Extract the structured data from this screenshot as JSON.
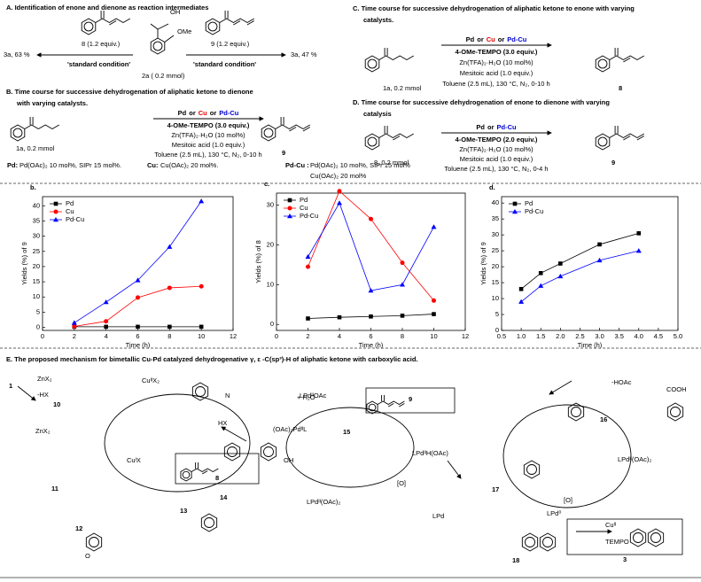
{
  "scheme_A": {
    "title": "A. Identification of enone and dienone as reaction intermediates",
    "labels": [
      "3a, 63 %",
      "8 (1.2 equiv.)",
      "'standard condition'",
      "2a ( 0.2 mmol)",
      "9 (1.2 equiv.)",
      "'standard condition'",
      "3a, 47 %",
      "OH",
      "OMe"
    ]
  },
  "scheme_B": {
    "title_lines": [
      "B. Time course for successive dehydrogenation of aliphatic ketone to dienone",
      "with varying catalysts."
    ],
    "catalyst_header": [
      "Pd",
      "or",
      "Cu",
      "or",
      "Pd-Cu"
    ],
    "conditions": [
      "4-OMe-TEMPO (3.0 equiv.)",
      "Zn(TFA)₂·H₂O (10 mol%)",
      "Mesitoic acid (1.0 equiv.)",
      "Toluene (2.5 mL), 130 °C, N₂, 0-10 h"
    ],
    "labels": [
      "1a, 0.2 mmol",
      "9",
      "Pd:",
      "Pd(OAc)₂ 10 mol%, SIPr 15 mol%.",
      "Cu:",
      "Cu(OAc)₂ 20 mol%.",
      "Pd-Cu :",
      "Pd(OAc)₂ 10 mol%, SIPr 15 mol%",
      "Cu(OAc)₂ 20 mol%"
    ]
  },
  "scheme_C": {
    "title_lines": [
      "C. Time course for successive dehydrogenation of aliphatic ketone to enone with varying",
      "catalysts."
    ],
    "catalyst_header": [
      "Pd",
      "or",
      "Cu",
      "or",
      "Pd-Cu"
    ],
    "conditions": [
      "4-OMe-TEMPO (3.0 equiv.)",
      "Zn(TFA)₂·H₂O (10 mol%)",
      "Mesitoic acid (1.0 equiv.)",
      "Toluene (2.5 mL), 130 °C, N₂, 0-10 h"
    ],
    "labels": [
      "1a, 0.2 mmol",
      "8"
    ]
  },
  "scheme_D": {
    "title_lines": [
      "D. Time course for successive dehydrogenation of enone to dienone with varying",
      "catalysis"
    ],
    "catalyst_header": [
      "Pd",
      "or",
      "Pd-Cu"
    ],
    "conditions": [
      "4-OMe-TEMPO (2.0 equiv.)",
      "Zn(TFA)₂·H₂O (10 mol%)",
      "Mesitoic acid (1.0 equiv.)",
      "Toluene (2.5 mL), 130 °C, N₂, 0-4 h"
    ],
    "labels": [
      "8, 0.2 mmol",
      "9"
    ]
  },
  "scheme_E": {
    "title": "E. The proposed mechanism for bimetallic Cu-Pd catalyzed dehydrogenative γ, ε -C(sp³)-H of aliphatic ketone with carboxylic acid.",
    "labels": [
      "1",
      "ZnX₂",
      "-HX",
      "10",
      "CuᴵᴵX₂",
      "+ H₂O",
      "HX",
      "ZnX₂",
      "CuᴵX",
      "11",
      "12",
      "13",
      "14",
      "15",
      "9",
      "8",
      "LPdᴵᴵH(OAc)",
      "[O]",
      "LPdᴵᴵ(OAc)₂",
      "16",
      "-HOAc",
      "COOH",
      "LPdᴵᴵ(OAc)₂",
      "[O]",
      "LPd⁰",
      "17",
      "LPd",
      "18",
      "Cuᴵᴵ",
      "TEMPO",
      "3",
      "(OAc)₂PdᴵᴵL",
      "LPdᴵᴵOAc",
      "N",
      "O",
      "OH"
    ]
  },
  "chart_data": [
    {
      "type": "line",
      "panel_label": "b.",
      "xlabel": "Time (h)",
      "ylabel": "Yields (%) of 9",
      "xlim": [
        0,
        12
      ],
      "xticks": [
        0,
        2,
        4,
        6,
        8,
        10,
        12
      ],
      "ylim": [
        -1,
        43
      ],
      "yticks": [
        0,
        5,
        10,
        15,
        20,
        25,
        30,
        35,
        40
      ],
      "legend": "upper-left",
      "x": [
        2,
        4,
        6,
        8,
        10
      ],
      "series": [
        {
          "name": "Pd",
          "color": "#000000",
          "marker": "square",
          "values": [
            0.2,
            0.2,
            0.2,
            0.2,
            0.2
          ]
        },
        {
          "name": "Cu",
          "color": "#ff0000",
          "marker": "circle",
          "values": [
            0.3,
            2,
            9.8,
            13,
            13.5
          ]
        },
        {
          "name": "Pd-Cu",
          "color": "#0000ff",
          "marker": "triangle",
          "values": [
            1.5,
            8.3,
            15.5,
            26.5,
            41.5
          ]
        }
      ]
    },
    {
      "type": "line",
      "panel_label": "c.",
      "xlabel": "Time (h)",
      "ylabel": "Yields (%) of 8",
      "xlim": [
        0,
        12
      ],
      "xticks": [
        0,
        2,
        4,
        6,
        8,
        10,
        12
      ],
      "ylim": [
        -1.5,
        33
      ],
      "yticks": [
        0,
        10,
        20,
        30
      ],
      "legend": "upper-left",
      "x": [
        2,
        4,
        6,
        8,
        10
      ],
      "series": [
        {
          "name": "Pd",
          "color": "#000000",
          "marker": "square",
          "values": [
            1.5,
            1.8,
            2,
            2.2,
            2.6
          ]
        },
        {
          "name": "Cu",
          "color": "#ff0000",
          "marker": "circle",
          "values": [
            14.5,
            33.5,
            26.5,
            15.5,
            6
          ]
        },
        {
          "name": "Pd-Cu",
          "color": "#0000ff",
          "marker": "triangle",
          "values": [
            17,
            30.5,
            8.5,
            10,
            24.5
          ]
        }
      ]
    },
    {
      "type": "line",
      "panel_label": "d.",
      "xlabel": "Time (h)",
      "ylabel": "Yields (%) of 9",
      "xlim": [
        0.5,
        5
      ],
      "xticks": [
        0.5,
        {
          "value": 1,
          "label": "1.0"
        },
        1.5,
        {
          "value": 2,
          "label": "2.0"
        },
        2.5,
        {
          "value": 3,
          "label": "3.0"
        },
        3.5,
        {
          "value": 4,
          "label": "4.0"
        },
        4.5,
        {
          "value": 5,
          "label": "5.0"
        }
      ],
      "ylim": [
        0,
        42
      ],
      "yticks": [
        0,
        5,
        10,
        15,
        20,
        25,
        30,
        35,
        40
      ],
      "legend": "upper-left",
      "x": [
        1,
        1.5,
        2,
        3,
        4
      ],
      "series": [
        {
          "name": "Pd",
          "color": "#000000",
          "marker": "square",
          "values": [
            13,
            18,
            21,
            27,
            30.5
          ]
        },
        {
          "name": "Pd-Cu",
          "color": "#0000ff",
          "marker": "triangle",
          "values": [
            9,
            14,
            17,
            22,
            25
          ]
        }
      ]
    }
  ]
}
